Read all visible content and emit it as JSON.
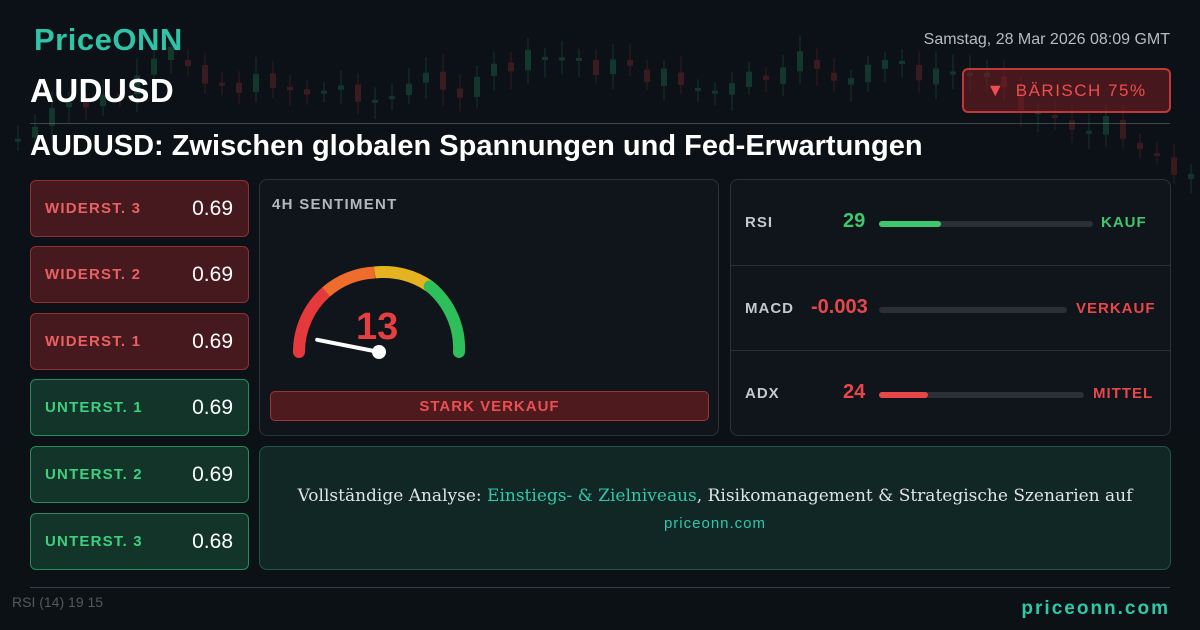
{
  "header": {
    "logo_text": "PriceONN",
    "datetime": "Samstag, 28 Mar 2026 08:09 GMT",
    "symbol": "AUDUSD",
    "badge_label": "BÄRISCH 75%",
    "badge_icon": "triangle-down-icon",
    "headline": "AUDUSD: Zwischen globalen Spannungen und Fed-Erwartungen"
  },
  "levels": [
    {
      "label": "WIDERST. 3",
      "value": "0.69",
      "kind": "resistance"
    },
    {
      "label": "WIDERST. 2",
      "value": "0.69",
      "kind": "resistance"
    },
    {
      "label": "WIDERST. 1",
      "value": "0.69",
      "kind": "resistance"
    },
    {
      "label": "UNTERST. 1",
      "value": "0.69",
      "kind": "support"
    },
    {
      "label": "UNTERST. 2",
      "value": "0.69",
      "kind": "support"
    },
    {
      "label": "UNTERST. 3",
      "value": "0.68",
      "kind": "support"
    }
  ],
  "sentiment": {
    "title": "4H SENTIMENT",
    "value": "13",
    "gauge_fraction": 0.13,
    "verdict": "STARK VERKAUF"
  },
  "indicators": [
    {
      "name": "RSI",
      "value": "29",
      "fill_fraction": 0.29,
      "signal": "KAUF",
      "value_color": "#3ec86e",
      "signal_color": "#3ec86e"
    },
    {
      "name": "MACD",
      "value": "-0.003",
      "fill_fraction": 0.0,
      "signal": "VERKAUF",
      "value_color": "#e8474a",
      "signal_color": "#e8474a"
    },
    {
      "name": "ADX",
      "value": "24",
      "fill_fraction": 0.24,
      "signal": "MITTEL",
      "value_color": "#e8474a",
      "signal_color": "#e8474a"
    }
  ],
  "cta": {
    "prefix": "Vollständige Analyse: ",
    "highlight": "Einstiegs- & Zielniveaus",
    "suffix": ", Risikomanagement & Strategische Szenarien auf",
    "url": "priceonn.com"
  },
  "background": {
    "rsi_label": "RSI",
    "rsi_period": "(14)",
    "rsi_values": "19 15"
  },
  "footer": {
    "url": "priceonn.com"
  },
  "colors": {
    "accent": "#2fc8a8",
    "bearish": "#e8474a",
    "bullish": "#3ec86e"
  }
}
